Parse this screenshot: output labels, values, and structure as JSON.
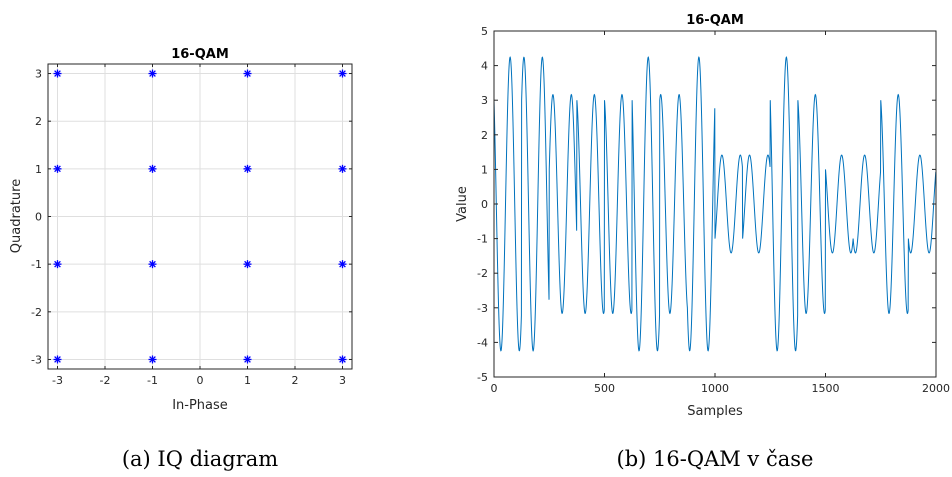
{
  "chart_data": [
    {
      "type": "scatter",
      "title": "16-QAM",
      "xlabel": "In-Phase",
      "ylabel": "Quadrature",
      "xlim": [
        -3.2,
        3.2
      ],
      "ylim": [
        -3.2,
        3.2
      ],
      "xticks": [
        "-3",
        "-2",
        "-1",
        "0",
        "1",
        "2",
        "3"
      ],
      "yticks": [
        "-3",
        "-2",
        "-1",
        "0",
        "1",
        "2",
        "3"
      ],
      "grid": true,
      "marker": "asterisk",
      "color": "#0000ff",
      "caption": "(a) IQ diagram",
      "points": [
        {
          "x": -3,
          "y": 3
        },
        {
          "x": -1,
          "y": 3
        },
        {
          "x": 1,
          "y": 3
        },
        {
          "x": 3,
          "y": 3
        },
        {
          "x": -3,
          "y": 1
        },
        {
          "x": -1,
          "y": 1
        },
        {
          "x": 1,
          "y": 1
        },
        {
          "x": 3,
          "y": 1
        },
        {
          "x": -3,
          "y": -1
        },
        {
          "x": -1,
          "y": -1
        },
        {
          "x": 1,
          "y": -1
        },
        {
          "x": 3,
          "y": -1
        },
        {
          "x": -3,
          "y": -3
        },
        {
          "x": -1,
          "y": -3
        },
        {
          "x": 1,
          "y": -3
        },
        {
          "x": 3,
          "y": -3
        }
      ]
    },
    {
      "type": "line",
      "title": "16-QAM",
      "xlabel": "Samples",
      "ylabel": "Value",
      "xlim": [
        0,
        2000
      ],
      "ylim": [
        -5,
        5
      ],
      "xticks": [
        "0",
        "500",
        "1000",
        "1500",
        "2000"
      ],
      "yticks": [
        "5",
        "4",
        "3",
        "2",
        "1",
        "0",
        "-1",
        "-2",
        "-3",
        "-4",
        "-5"
      ],
      "grid": false,
      "color": "#0072bd",
      "caption": "(b) 16-QAM v čase",
      "samples_per_symbol": 125,
      "cycles_per_symbol": 1.5,
      "symbols": [
        {
          "i": 3,
          "q": 3
        },
        {
          "i": -3,
          "q": 3
        },
        {
          "i": 1,
          "q": -3
        },
        {
          "i": -3,
          "q": -1
        },
        {
          "i": 3,
          "q": 1
        },
        {
          "i": -3,
          "q": -3
        },
        {
          "i": 3,
          "q": -1
        },
        {
          "i": 3,
          "q": -3
        },
        {
          "i": -1,
          "q": -1
        },
        {
          "i": 1,
          "q": 1
        },
        {
          "i": 3,
          "q": 3
        },
        {
          "i": -3,
          "q": -1
        },
        {
          "i": 1,
          "q": 1
        },
        {
          "i": 1,
          "q": -1
        },
        {
          "i": 3,
          "q": 1
        },
        {
          "i": 1,
          "q": -1
        }
      ]
    }
  ]
}
